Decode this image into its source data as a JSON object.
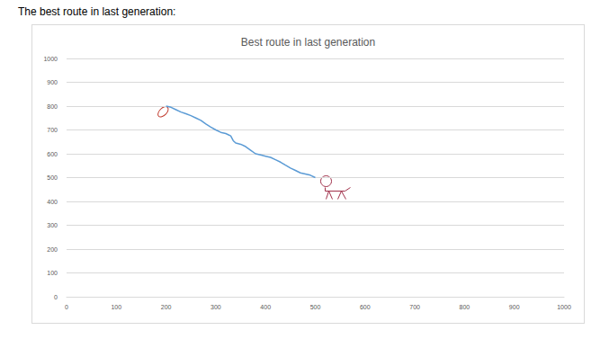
{
  "heading": "The best route in last generation:",
  "chart_data": {
    "type": "line",
    "title": "Best route in last generation",
    "x": [
      200,
      210,
      220,
      230,
      240,
      250,
      260,
      270,
      280,
      290,
      300,
      310,
      320,
      330,
      335,
      340,
      350,
      360,
      370,
      380,
      390,
      400,
      410,
      420,
      430,
      440,
      450,
      460,
      470,
      480,
      490,
      500
    ],
    "values": [
      800,
      795,
      785,
      775,
      768,
      760,
      750,
      740,
      725,
      712,
      700,
      690,
      685,
      675,
      655,
      645,
      640,
      630,
      615,
      600,
      595,
      590,
      585,
      575,
      565,
      552,
      540,
      530,
      520,
      515,
      510,
      500
    ],
    "color": "#5b9bd5",
    "marker": "none",
    "xlim": [
      0,
      1000
    ],
    "xticks": [
      0,
      100,
      200,
      300,
      400,
      500,
      600,
      700,
      800,
      900,
      1000
    ],
    "ylim": [
      0,
      1000
    ],
    "yticks": [
      0,
      100,
      200,
      300,
      400,
      500,
      600,
      700,
      800,
      900,
      1000
    ],
    "grid": true
  }
}
